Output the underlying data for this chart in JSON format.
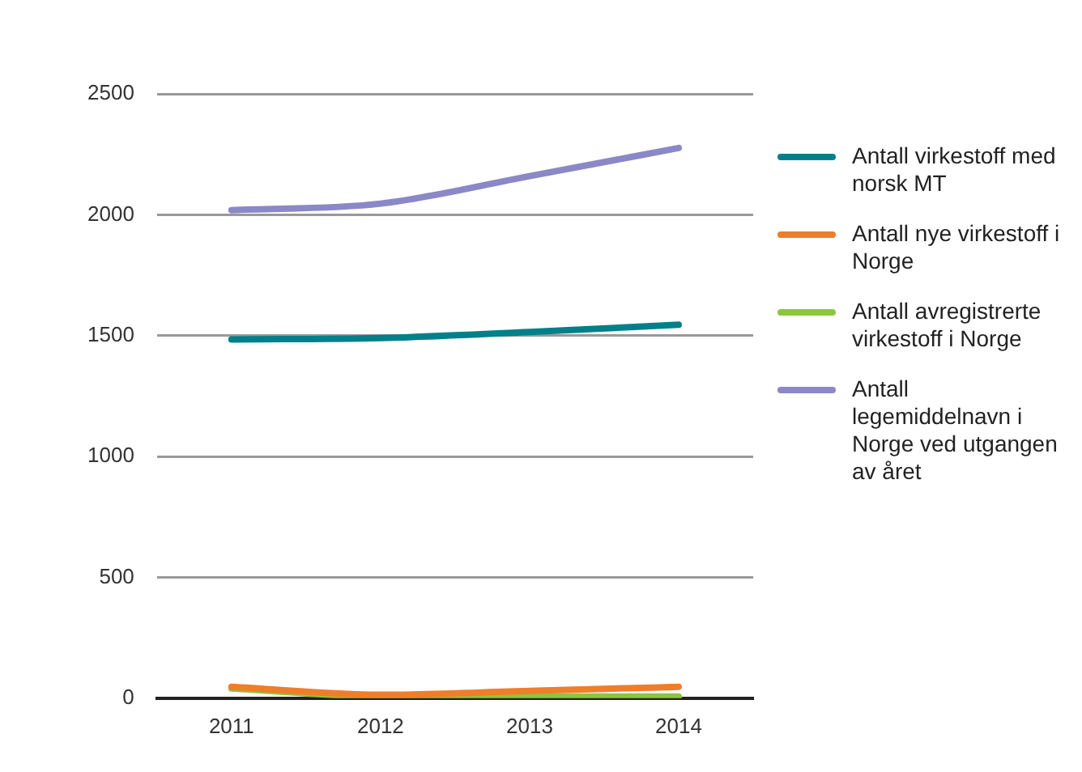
{
  "chart_data": {
    "type": "line",
    "categories": [
      "2011",
      "2012",
      "2013",
      "2014"
    ],
    "series": [
      {
        "name": "Antall virkestoff med norsk MT",
        "color": "#00808a",
        "values": [
          1484,
          1490,
          1515,
          1545
        ]
      },
      {
        "name": "Antall nye virkestoff i Norge",
        "color": "#f07d2a",
        "values": [
          47,
          14,
          30,
          47
        ]
      },
      {
        "name": "Antall avregistrerte virkestoff i Norge",
        "color": "#8cc63f",
        "values": [
          40,
          7,
          7,
          7
        ]
      },
      {
        "name": "Antall legemiddelnavn i Norge ved utgangen av året",
        "color": "#8a88c6",
        "values": [
          2019,
          2046,
          2160,
          2276
        ]
      }
    ],
    "ylim": [
      0,
      2500
    ],
    "yticks": [
      0,
      500,
      1000,
      1500,
      2000,
      2500
    ],
    "grid": "y",
    "legend": "right",
    "marker": "none",
    "line_style": "solid"
  }
}
